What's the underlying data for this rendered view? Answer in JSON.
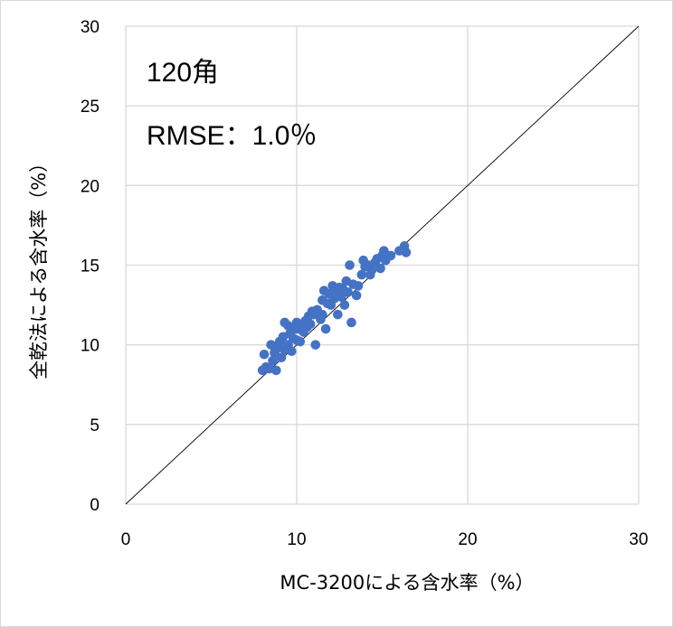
{
  "chart_data": {
    "type": "scatter",
    "xlabel": "MC-3200による含水率（%）",
    "ylabel": "全乾法による含水率（%）",
    "xlim": [
      0,
      30
    ],
    "ylim": [
      0,
      30
    ],
    "x_ticks": [
      "0",
      "10",
      "20",
      "30"
    ],
    "y_ticks": [
      "0",
      "5",
      "10",
      "15",
      "20",
      "25",
      "30"
    ],
    "grid": true,
    "annotations": [
      "120角",
      "RMSE：1.0％"
    ],
    "reference_line": {
      "from": [
        0,
        0
      ],
      "to": [
        30,
        30
      ]
    },
    "marker_color": "#4472c4",
    "series": [
      {
        "points": [
          [
            8.0,
            8.4
          ],
          [
            8.2,
            8.6
          ],
          [
            8.1,
            9.4
          ],
          [
            8.4,
            8.5
          ],
          [
            8.6,
            9.0
          ],
          [
            8.8,
            8.4
          ],
          [
            8.7,
            9.5
          ],
          [
            8.5,
            10.0
          ],
          [
            8.9,
            9.8
          ],
          [
            9.0,
            10.2
          ],
          [
            9.1,
            9.2
          ],
          [
            9.2,
            10.5
          ],
          [
            9.3,
            9.7
          ],
          [
            9.3,
            11.4
          ],
          [
            9.5,
            10.0
          ],
          [
            9.5,
            11.2
          ],
          [
            9.6,
            10.7
          ],
          [
            9.7,
            9.6
          ],
          [
            9.8,
            10.4
          ],
          [
            9.9,
            11.0
          ],
          [
            10.0,
            10.3
          ],
          [
            10.0,
            11.4
          ],
          [
            10.1,
            11.0
          ],
          [
            10.2,
            10.2
          ],
          [
            10.3,
            11.3
          ],
          [
            10.4,
            10.8
          ],
          [
            10.5,
            11.5
          ],
          [
            10.6,
            11.1
          ],
          [
            10.7,
            11.8
          ],
          [
            10.8,
            11.3
          ],
          [
            10.9,
            12.1
          ],
          [
            11.0,
            11.9
          ],
          [
            11.1,
            10.0
          ],
          [
            11.2,
            12.2
          ],
          [
            11.4,
            11.6
          ],
          [
            11.5,
            11.9
          ],
          [
            11.7,
            11.0
          ],
          [
            11.5,
            12.8
          ],
          [
            11.6,
            13.4
          ],
          [
            11.8,
            12.6
          ],
          [
            11.9,
            13.2
          ],
          [
            12.0,
            12.5
          ],
          [
            12.1,
            13.7
          ],
          [
            12.2,
            12.9
          ],
          [
            12.3,
            13.3
          ],
          [
            12.4,
            11.9
          ],
          [
            12.5,
            13.6
          ],
          [
            12.6,
            13.0
          ],
          [
            12.7,
            13.5
          ],
          [
            12.8,
            12.5
          ],
          [
            12.9,
            14.0
          ],
          [
            13.0,
            13.3
          ],
          [
            13.1,
            15.0
          ],
          [
            13.2,
            11.4
          ],
          [
            13.3,
            13.8
          ],
          [
            13.5,
            13.1
          ],
          [
            13.6,
            13.7
          ],
          [
            13.8,
            14.4
          ],
          [
            13.9,
            15.3
          ],
          [
            14.0,
            14.9
          ],
          [
            14.2,
            15.0
          ],
          [
            14.3,
            14.4
          ],
          [
            14.4,
            14.7
          ],
          [
            14.6,
            15.2
          ],
          [
            14.7,
            15.4
          ],
          [
            14.9,
            14.8
          ],
          [
            15.0,
            15.6
          ],
          [
            15.1,
            15.9
          ],
          [
            15.2,
            15.3
          ],
          [
            15.3,
            15.6
          ],
          [
            15.5,
            15.6
          ],
          [
            16.0,
            15.9
          ],
          [
            16.3,
            16.2
          ],
          [
            16.4,
            15.8
          ]
        ]
      }
    ]
  }
}
